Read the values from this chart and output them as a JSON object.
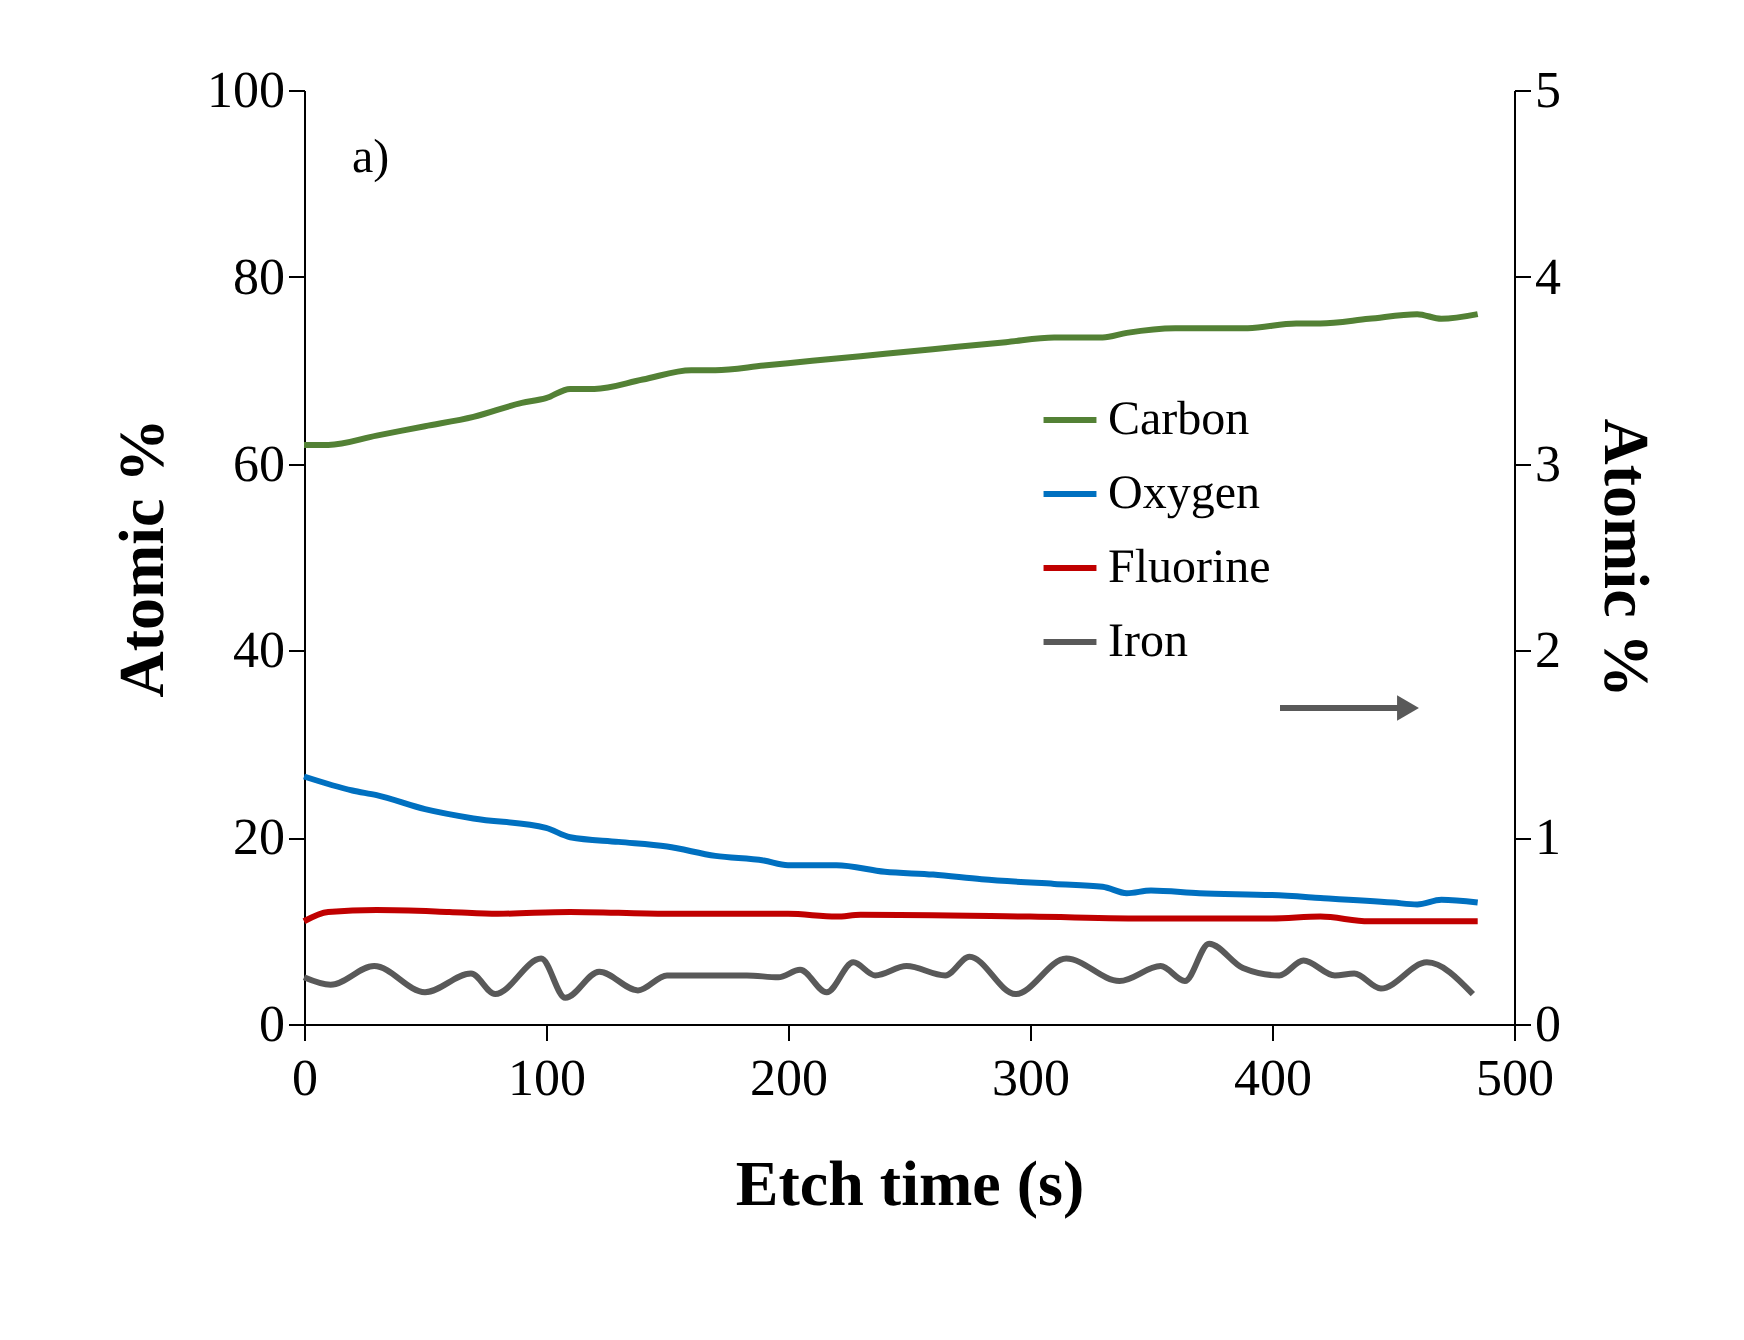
{
  "chart_data": {
    "type": "line",
    "xlabel": "Etch time (s)",
    "ylabel": "Atomic %",
    "y2label": "Atomic %",
    "annotations": [
      "a)"
    ],
    "xlim": [
      0,
      500
    ],
    "xticks": [
      0,
      100,
      200,
      300,
      400,
      500
    ],
    "ylim": [
      0,
      100
    ],
    "yticks": [
      0,
      20,
      40,
      60,
      80,
      100
    ],
    "y2lim": [
      0,
      5
    ],
    "y2ticks": [
      0,
      1,
      2,
      3,
      4,
      5
    ],
    "grid": false,
    "legend": "right",
    "marker": "none",
    "line_style": "solid",
    "series": [
      {
        "name": "Carbon",
        "color": "#538135",
        "x": [
          0,
          10,
          30,
          50,
          70,
          90,
          100,
          110,
          120,
          140,
          160,
          170,
          190,
          210,
          230,
          250,
          270,
          290,
          310,
          330,
          340,
          360,
          390,
          410,
          420,
          440,
          460,
          470,
          485
        ],
        "values": [
          62,
          62,
          63,
          64,
          65,
          66.5,
          67,
          68,
          68,
          69,
          70,
          70,
          70.5,
          71,
          71.5,
          72,
          72.5,
          73,
          73.5,
          73.5,
          74,
          74.5,
          74.5,
          75,
          75,
          75.5,
          76,
          75.5,
          76
        ]
      },
      {
        "name": "Oxygen",
        "color": "#0070c0",
        "x": [
          0,
          20,
          30,
          50,
          70,
          100,
          110,
          130,
          150,
          170,
          190,
          200,
          220,
          240,
          260,
          280,
          310,
          330,
          340,
          350,
          370,
          400,
          420,
          450,
          460,
          470,
          485
        ],
        "values": [
          26.5,
          25,
          24.5,
          23,
          22,
          21,
          20,
          19.5,
          19,
          18,
          17.5,
          17,
          17,
          16.3,
          16,
          15.5,
          15,
          14.7,
          14,
          14.3,
          14,
          13.8,
          13.5,
          13,
          12.8,
          13.3,
          13
        ]
      },
      {
        "name": "Fluorine",
        "color": "#c00000",
        "x": [
          0,
          10,
          30,
          60,
          80,
          110,
          150,
          200,
          220,
          230,
          300,
          350,
          400,
          420,
          440,
          485
        ],
        "values": [
          11,
          12,
          12.2,
          12,
          11.8,
          12,
          11.8,
          11.8,
          11.5,
          11.7,
          11.5,
          11.3,
          11.3,
          11.5,
          11,
          11
        ]
      },
      {
        "name": "Iron",
        "color": "#595959",
        "axis": "y2",
        "x": [
          0,
          11,
          29,
          50,
          69,
          79,
          98,
          108,
          122,
          138,
          150,
          183,
          196,
          205,
          216,
          227,
          236,
          249,
          265,
          275,
          294,
          315,
          337,
          354,
          364,
          374,
          388,
          403,
          413,
          426,
          434,
          445,
          464,
          483
        ],
        "values": [
          0.25,
          0.21,
          0.31,
          0.17,
          0.27,
          0.16,
          0.35,
          0.14,
          0.28,
          0.18,
          0.26,
          0.26,
          0.25,
          0.29,
          0.17,
          0.33,
          0.26,
          0.31,
          0.26,
          0.36,
          0.16,
          0.35,
          0.23,
          0.31,
          0.23,
          0.43,
          0.3,
          0.26,
          0.34,
          0.26,
          0.27,
          0.19,
          0.33,
          0.16
        ]
      }
    ]
  }
}
